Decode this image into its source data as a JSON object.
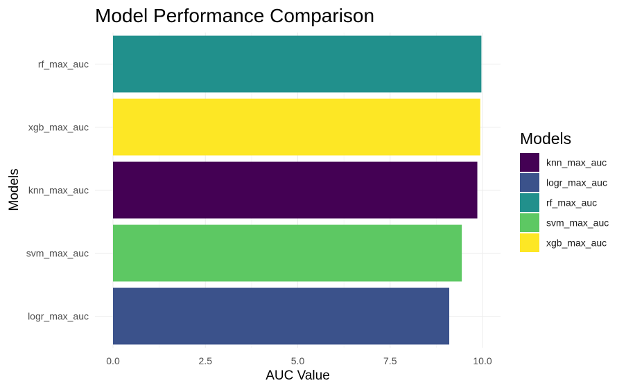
{
  "chart_data": {
    "type": "bar",
    "orientation": "horizontal",
    "title": "Model Performance Comparison",
    "xlabel": "AUC Value",
    "ylabel": "Models",
    "xlim": [
      0,
      10
    ],
    "x_ticks": [
      "0.0",
      "2.5",
      "5.0",
      "7.5",
      "10.0"
    ],
    "grid": true,
    "legend_position": "right",
    "legend_title": "Models",
    "categories_top_to_bottom": [
      "rf_max_auc",
      "xgb_max_auc",
      "knn_max_auc",
      "svm_max_auc",
      "logr_max_auc"
    ],
    "values_top_to_bottom": [
      9.97,
      9.94,
      9.86,
      9.44,
      9.1
    ],
    "legend": [
      {
        "label": "knn_max_auc",
        "color": "#440154"
      },
      {
        "label": "logr_max_auc",
        "color": "#3B528B"
      },
      {
        "label": "rf_max_auc",
        "color": "#21908C"
      },
      {
        "label": "svm_max_auc",
        "color": "#5DC863"
      },
      {
        "label": "xgb_max_auc",
        "color": "#FDE725"
      }
    ]
  }
}
